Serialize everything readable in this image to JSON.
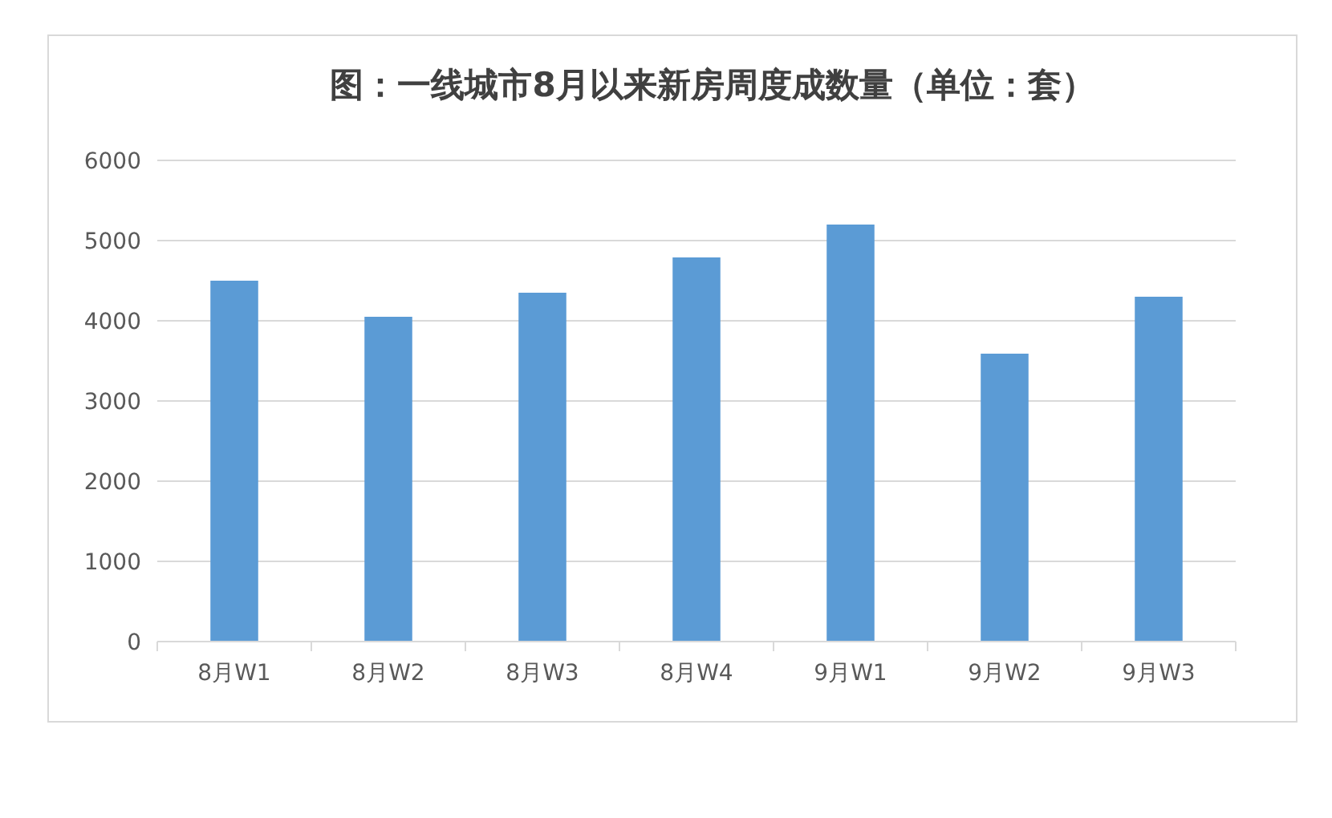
{
  "chart_data": {
    "type": "bar",
    "title": "图：一线城市8月以来新房周度成数量（单位：套）",
    "categories": [
      "8月W1",
      "8月W2",
      "8月W3",
      "8月W4",
      "9月W1",
      "9月W2",
      "9月W3"
    ],
    "values": [
      4500,
      4050,
      4350,
      4790,
      5200,
      3590,
      4300
    ],
    "color": "#5b9bd5",
    "ylim": [
      0,
      6000
    ],
    "yticks": [
      0,
      1000,
      2000,
      3000,
      4000,
      5000,
      6000
    ],
    "grid": "y"
  }
}
